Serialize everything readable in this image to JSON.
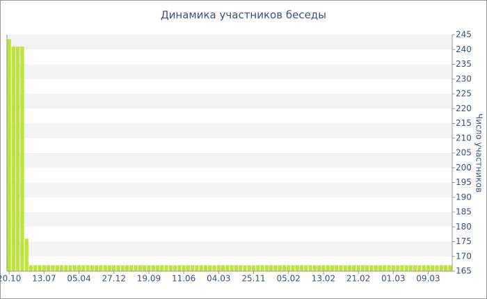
{
  "chart_data": {
    "type": "bar",
    "title": "Динамика участников беседы",
    "y_label": "Число участников",
    "categories": [
      "20.10",
      null,
      null,
      null,
      null,
      null,
      null,
      null,
      "13.07",
      null,
      null,
      null,
      null,
      null,
      null,
      null,
      "05.04",
      null,
      null,
      null,
      null,
      null,
      null,
      null,
      "27.12",
      null,
      null,
      null,
      null,
      null,
      null,
      null,
      "19.09",
      null,
      null,
      null,
      null,
      null,
      null,
      null,
      "11.06",
      null,
      null,
      null,
      null,
      null,
      null,
      null,
      "04.03",
      null,
      null,
      null,
      null,
      null,
      null,
      null,
      "25.11",
      null,
      null,
      null,
      null,
      null,
      null,
      null,
      "05.02",
      null,
      null,
      null,
      null,
      null,
      null,
      null,
      "13.02",
      null,
      null,
      null,
      null,
      null,
      null,
      null,
      "21.02",
      null,
      null,
      null,
      null,
      null,
      null,
      null,
      "01.03",
      null,
      null,
      null,
      null,
      null,
      null,
      null,
      "09.03",
      null,
      null,
      null,
      null,
      null
    ],
    "values": [
      243.5,
      241,
      241,
      241,
      176,
      167,
      167,
      167,
      167,
      167,
      167,
      167,
      167,
      167,
      167,
      167,
      167,
      167,
      167,
      167,
      167,
      167,
      167,
      167,
      167,
      167,
      167,
      167,
      167,
      167,
      167,
      167,
      167,
      167,
      167,
      167,
      167,
      167,
      167,
      167,
      167,
      167,
      167,
      167,
      167,
      167,
      167,
      167,
      167,
      167,
      167,
      167,
      167,
      167,
      167,
      167,
      167,
      167,
      167,
      167,
      167,
      167,
      167,
      167,
      167,
      167,
      167,
      167,
      167,
      167,
      167,
      167,
      167,
      167,
      167,
      167,
      167,
      167,
      167,
      167,
      167,
      167,
      167,
      167,
      167,
      167,
      167,
      167,
      167,
      167,
      167,
      167,
      167,
      167,
      167,
      167,
      167,
      167,
      167,
      167,
      167,
      167
    ],
    "color": "#bce43a",
    "ylim": [
      165,
      245
    ],
    "yticks": [
      165,
      170,
      175,
      180,
      185,
      190,
      195,
      200,
      205,
      210,
      215,
      220,
      225,
      230,
      235,
      240,
      245
    ],
    "grid": true
  }
}
